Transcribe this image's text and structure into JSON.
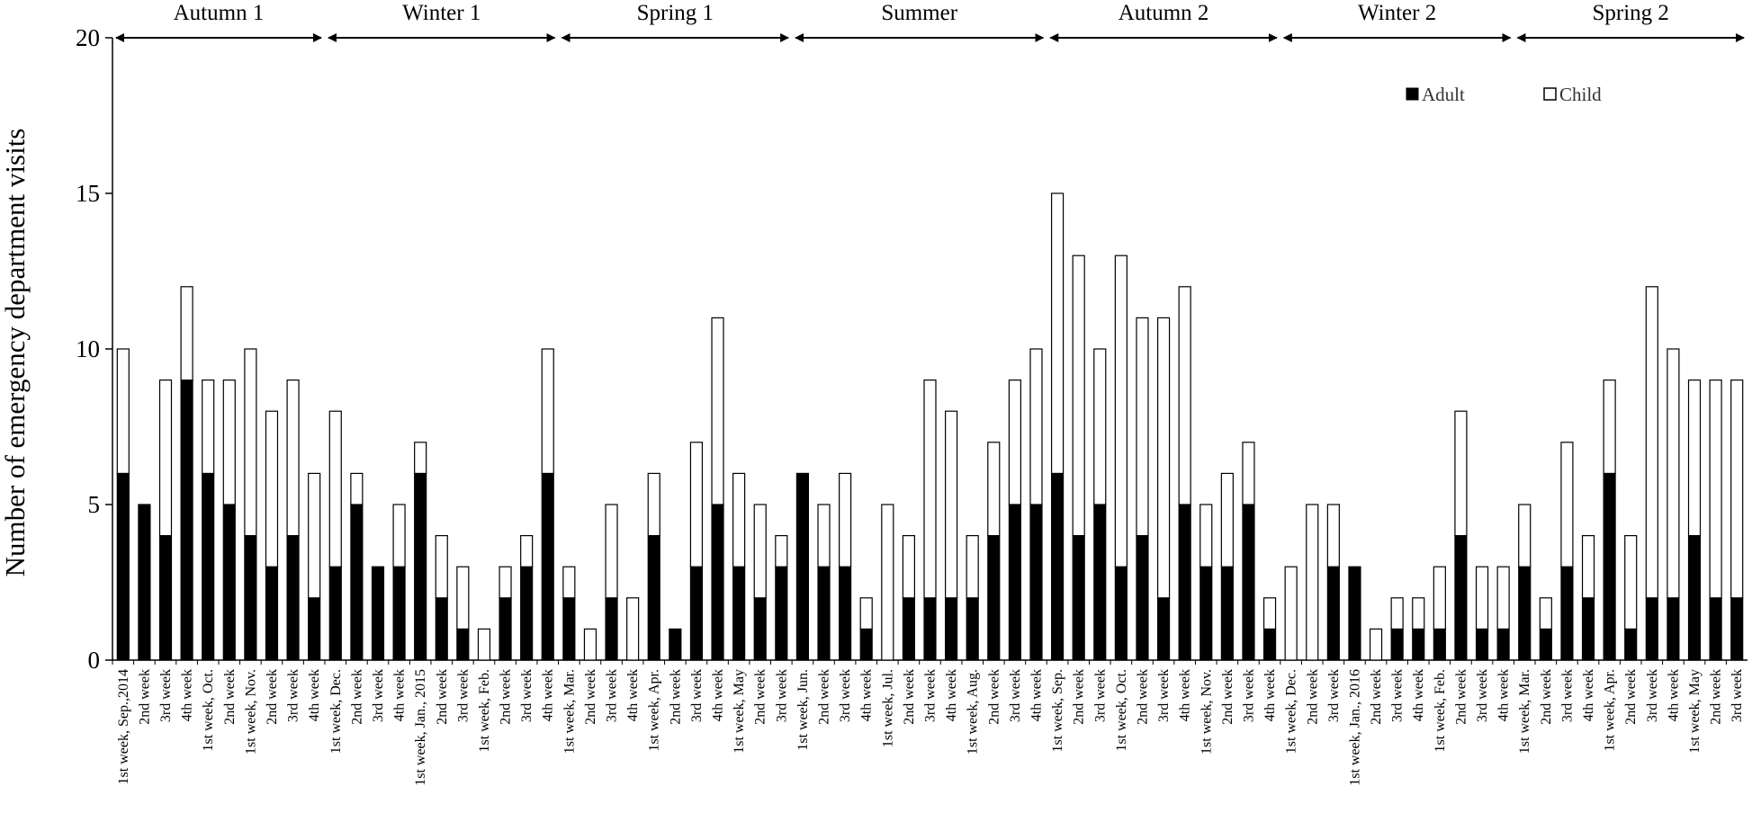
{
  "chart_data": {
    "type": "bar",
    "stacked": true,
    "title": "",
    "xlabel": "",
    "ylabel": "Number of emergency department visits",
    "ylim": [
      0,
      20
    ],
    "yticks": [
      0,
      5,
      10,
      15,
      20
    ],
    "legend": {
      "position": "top-right",
      "entries": [
        "Adult",
        "Child"
      ]
    },
    "categories": [
      "1st week, Sep.,2014",
      "2nd week",
      "3rd week",
      "4th week",
      "1st week, Oct.",
      "2nd week",
      "1st week, Nov.",
      "2nd week",
      "3rd week",
      "4th week",
      "1st week, Dec.",
      "2nd week",
      "3rd week",
      "4th week",
      "1st week, Jan., 2015",
      "2nd week",
      "3rd week",
      "1st week, Feb.",
      "2nd week",
      "3rd week",
      "4th week",
      "1st week, Mar.",
      "2nd week",
      "3rd week",
      "4th week",
      "1st week, Apr.",
      "2nd week",
      "3rd week",
      "4th week",
      "1st week, May",
      "2nd week",
      "3rd week",
      "1st week, Jun.",
      "2nd week",
      "3rd week",
      "4th week",
      "1st week, Jul.",
      "2nd week",
      "3rd week",
      "4th week",
      "1st week, Aug.",
      "2nd week",
      "3rd week",
      "4th week",
      "1st week, Sep.",
      "2nd week",
      "3rd week",
      "1st week, Oct.",
      "2nd week",
      "3rd week",
      "4th week",
      "1st week, Nov.",
      "2nd week",
      "3rd week",
      "4th week",
      "1st week, Dec.",
      "2nd week",
      "3rd week",
      "1st week, Jan., 2016",
      "2nd week",
      "3rd week",
      "4th week",
      "1st week, Feb.",
      "2nd week",
      "3rd week",
      "4th week",
      "1st week, Mar.",
      "2nd week",
      "3rd week",
      "4th week",
      "1st week, Apr.",
      "2nd week",
      "3rd week",
      "4th week",
      "1st week, May",
      "2nd week",
      "3rd week"
    ],
    "series": [
      {
        "name": "Adult",
        "color": "#000000",
        "values": [
          6,
          5,
          4,
          9,
          6,
          5,
          4,
          3,
          4,
          2,
          3,
          5,
          3,
          3,
          6,
          2,
          1,
          0,
          2,
          3,
          6,
          2,
          0,
          2,
          0,
          4,
          1,
          3,
          5,
          3,
          2,
          3,
          6,
          3,
          3,
          1,
          0,
          2,
          2,
          2,
          2,
          4,
          5,
          5,
          6,
          4,
          5,
          3,
          4,
          2,
          5,
          3,
          3,
          5,
          1,
          0,
          0,
          3,
          3,
          0,
          1,
          1,
          1,
          4,
          1,
          1,
          3,
          1,
          3,
          2,
          6,
          1,
          2,
          2,
          4,
          2,
          2
        ]
      },
      {
        "name": "Child",
        "color": "#ffffff",
        "values": [
          4,
          0,
          5,
          3,
          3,
          4,
          6,
          5,
          5,
          4,
          5,
          1,
          0,
          2,
          1,
          2,
          2,
          1,
          1,
          1,
          4,
          1,
          1,
          3,
          2,
          2,
          0,
          4,
          6,
          3,
          3,
          1,
          0,
          2,
          3,
          1,
          5,
          2,
          7,
          6,
          2,
          3,
          4,
          5,
          9,
          9,
          5,
          10,
          7,
          9,
          7,
          2,
          3,
          2,
          1,
          3,
          5,
          2,
          0,
          1,
          1,
          1,
          2,
          4,
          2,
          2,
          2,
          1,
          4,
          2,
          3,
          3,
          10,
          8,
          5,
          7,
          7
        ]
      }
    ],
    "seasons": [
      {
        "label": "Autumn 1",
        "start": 0,
        "end": 9
      },
      {
        "label": "Winter 1",
        "start": 10,
        "end": 20
      },
      {
        "label": "Spring 1",
        "start": 21,
        "end": 31
      },
      {
        "label": "Summer",
        "start": 32,
        "end": 43
      },
      {
        "label": "Autumn 2",
        "start": 44,
        "end": 54
      },
      {
        "label": "Winter 2",
        "start": 55,
        "end": 65
      },
      {
        "label": "Spring 2",
        "start": 66,
        "end": 76
      }
    ]
  }
}
